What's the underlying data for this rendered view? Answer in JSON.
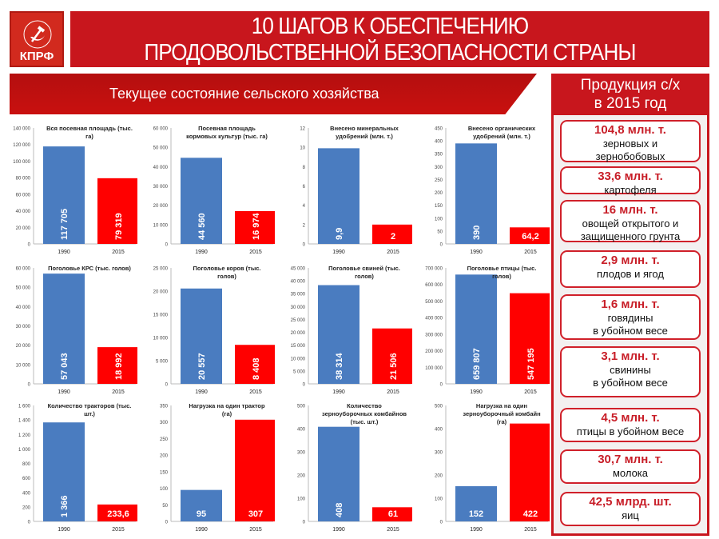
{
  "logo": {
    "text": "КПРФ"
  },
  "header": {
    "title_line1": "10 ШАГОВ К ОБЕСПЕЧЕНИЮ",
    "title_line2": "ПРОДОВОЛЬСТВЕННОЙ БЕЗОПАСНОСТИ СТРАНЫ"
  },
  "section": {
    "title": "Текущее состояние сельского хозяйства"
  },
  "production": {
    "title_line1": "Продукция  с/х",
    "title_line2": "в 2015 год",
    "items": [
      {
        "value": "104,8 млн. т.",
        "desc": [
          "зерновых и",
          "зернобобовых"
        ]
      },
      {
        "value": "33,6 млн. т.",
        "desc": [
          "картофеля"
        ]
      },
      {
        "value": "16 млн. т.",
        "desc": [
          "овощей открытого и",
          "защищенного грунта"
        ]
      },
      {
        "value": "2,9 млн. т.",
        "desc": [
          "плодов и ягод"
        ]
      },
      {
        "value": "1,6 млн. т.",
        "desc": [
          "говядины",
          "в убойном весе"
        ]
      },
      {
        "value": "3,1 млн. т.",
        "desc": [
          "свинины",
          "в убойном весе"
        ]
      },
      {
        "value": "4,5 млн. т.",
        "desc": [
          "птицы в убойном весе"
        ]
      },
      {
        "value": "30,7 млн. т.",
        "desc": [
          "молока"
        ]
      },
      {
        "value": "42,5 млрд. шт.",
        "desc": [
          "яиц"
        ]
      }
    ]
  },
  "colors": {
    "bar_1990": "#4a7cc0",
    "bar_2015": "#ff0000",
    "accent": "#c8161d"
  },
  "chart_data": [
    {
      "type": "bar",
      "title": [
        "Вся посевная площадь (тыс.",
        "га)"
      ],
      "categories": [
        "1990",
        "2015"
      ],
      "values": [
        117705,
        79319
      ],
      "labels": [
        "117 705",
        "79 319"
      ],
      "ylim": [
        0,
        140000
      ],
      "step": 20000,
      "ticks": [
        "0",
        "20 000",
        "40 000",
        "60 000",
        "80 000",
        "100 000",
        "120 000",
        "140 000"
      ]
    },
    {
      "type": "bar",
      "title": [
        "Посевная площадь",
        "кормовых культур (тыс. га)"
      ],
      "categories": [
        "1990",
        "2015"
      ],
      "values": [
        44560,
        16974
      ],
      "labels": [
        "44 560",
        "16 974"
      ],
      "ylim": [
        0,
        60000
      ],
      "step": 10000,
      "ticks": [
        "0",
        "10 000",
        "20 000",
        "30 000",
        "40 000",
        "50 000",
        "60 000"
      ]
    },
    {
      "type": "bar",
      "title": [
        "Внесено минеральных",
        "удобрений (млн. т.)"
      ],
      "categories": [
        "1990",
        "2015"
      ],
      "values": [
        9.9,
        2
      ],
      "labels": [
        "9,9",
        "2"
      ],
      "ylim": [
        0,
        12
      ],
      "step": 2,
      "ticks": [
        "0",
        "2",
        "4",
        "6",
        "8",
        "10",
        "12"
      ]
    },
    {
      "type": "bar",
      "title": [
        "Внесено органических",
        "удобрений (млн. т.)"
      ],
      "categories": [
        "1990",
        "2015"
      ],
      "values": [
        390,
        64.2
      ],
      "labels": [
        "390",
        "64,2"
      ],
      "ylim": [
        0,
        450
      ],
      "step": 50,
      "ticks": [
        "0",
        "50",
        "100",
        "150",
        "200",
        "250",
        "300",
        "350",
        "400",
        "450"
      ],
      "horizontal_last": true
    },
    {
      "type": "bar",
      "title": [
        "Поголовье КРС (тыс. голов)"
      ],
      "categories": [
        "1990",
        "2015"
      ],
      "values": [
        57043,
        18992
      ],
      "labels": [
        "57 043",
        "18 992"
      ],
      "ylim": [
        0,
        60000
      ],
      "step": 10000,
      "ticks": [
        "0",
        "10 000",
        "20 000",
        "30 000",
        "40 000",
        "50 000",
        "60 000"
      ]
    },
    {
      "type": "bar",
      "title": [
        "Поголовье коров (тыс.",
        "голов)"
      ],
      "categories": [
        "1990",
        "2015"
      ],
      "values": [
        20557,
        8408
      ],
      "labels": [
        "20 557",
        "8 408"
      ],
      "ylim": [
        0,
        25000
      ],
      "step": 5000,
      "ticks": [
        "0",
        "5 000",
        "10 000",
        "15 000",
        "20 000",
        "25 000"
      ]
    },
    {
      "type": "bar",
      "title": [
        "Поголовье свиней (тыс.",
        "голов)"
      ],
      "categories": [
        "1990",
        "2015"
      ],
      "values": [
        38314,
        21506
      ],
      "labels": [
        "38 314",
        "21 506"
      ],
      "ylim": [
        0,
        45000
      ],
      "step": 5000,
      "ticks": [
        "0",
        "5 000",
        "10 000",
        "15 000",
        "20 000",
        "25 000",
        "30 000",
        "35 000",
        "40 000",
        "45 000"
      ]
    },
    {
      "type": "bar",
      "title": [
        "Поголовье птицы (тыс.",
        "голов)"
      ],
      "categories": [
        "1990",
        "2015"
      ],
      "values": [
        659807,
        547195
      ],
      "labels": [
        "659 807",
        "547 195"
      ],
      "ylim": [
        0,
        700000
      ],
      "step": 100000,
      "ticks": [
        "0",
        "100 000",
        "200 000",
        "300 000",
        "400 000",
        "500 000",
        "600 000",
        "700 000"
      ]
    },
    {
      "type": "bar",
      "title": [
        "Количество тракторов (тыс.",
        "шт.)"
      ],
      "categories": [
        "1990",
        "2015"
      ],
      "values": [
        1366,
        233.6
      ],
      "labels": [
        "1 366",
        "233,6"
      ],
      "ylim": [
        0,
        1600
      ],
      "step": 200,
      "ticks": [
        "0",
        "200",
        "400",
        "600",
        "800",
        "1 000",
        "1 200",
        "1 400",
        "1 600"
      ],
      "horizontal_last": true
    },
    {
      "type": "bar",
      "title": [
        "Нагрузка на один трактор",
        "(га)"
      ],
      "categories": [
        "1990",
        "2015"
      ],
      "values": [
        95,
        307
      ],
      "labels": [
        "95",
        "307"
      ],
      "ylim": [
        0,
        350
      ],
      "step": 50,
      "ticks": [
        "0",
        "50",
        "100",
        "150",
        "200",
        "250",
        "300",
        "350"
      ],
      "horizontal_last": true
    },
    {
      "type": "bar",
      "title": [
        "Количество",
        "зерноуборочных комбайнов",
        "(тыс. шт.)"
      ],
      "categories": [
        "1990",
        "2015"
      ],
      "values": [
        408,
        61
      ],
      "labels": [
        "408",
        "61"
      ],
      "ylim": [
        0,
        500
      ],
      "step": 100,
      "ticks": [
        "0",
        "100",
        "200",
        "300",
        "400",
        "500"
      ],
      "horizontal_last": true
    },
    {
      "type": "bar",
      "title": [
        "Нагрузка на один",
        "зерноуборочный комбайн",
        "(га)"
      ],
      "categories": [
        "1990",
        "2015"
      ],
      "values": [
        152,
        422
      ],
      "labels": [
        "152",
        "422"
      ],
      "ylim": [
        0,
        500
      ],
      "step": 100,
      "ticks": [
        "0",
        "100",
        "200",
        "300",
        "400",
        "500"
      ],
      "horizontal_last": true
    }
  ]
}
